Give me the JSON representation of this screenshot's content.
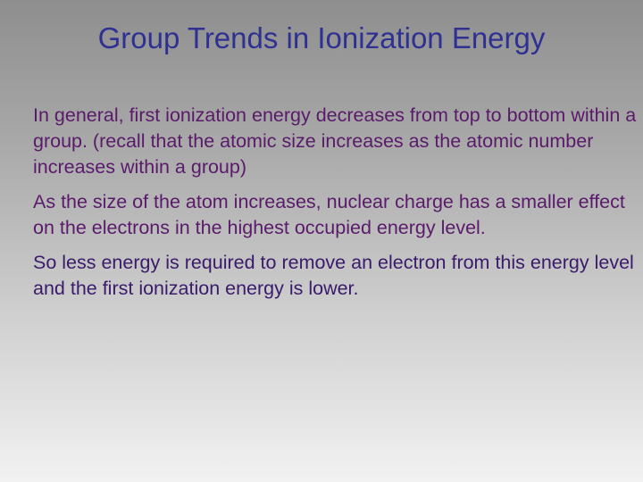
{
  "slide": {
    "title": "Group Trends in Ionization Energy",
    "paragraphs": [
      "In general, first ionization energy decreases from top to bottom within a group. (recall that the atomic size increases as the atomic number increases within a group)",
      "As the size of the atom increases, nuclear charge has a smaller effect on the electrons in the highest occupied energy level.",
      "So less energy is required to remove an electron from this energy level and the first ionization energy is lower."
    ]
  },
  "colors": {
    "title": "#2e3192",
    "body_text": "#5a1a6a"
  }
}
